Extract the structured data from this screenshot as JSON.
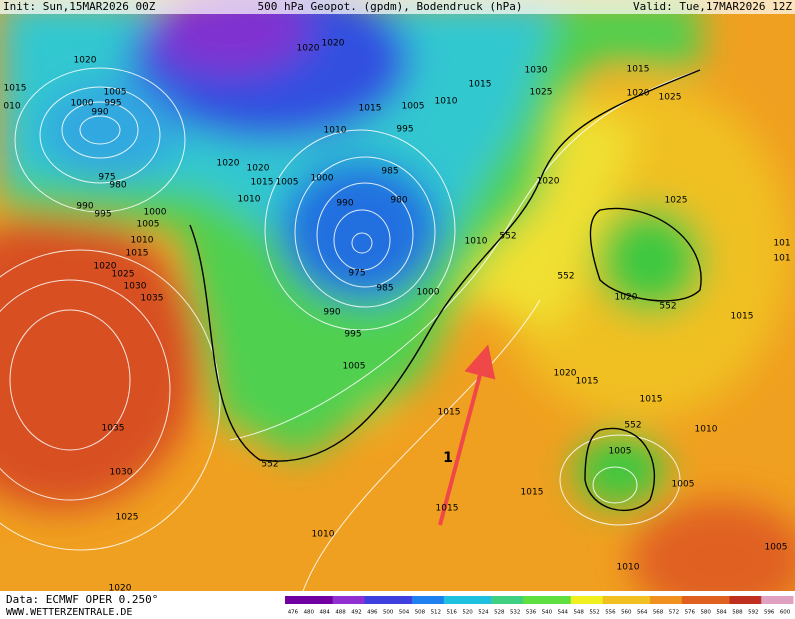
{
  "header": {
    "init": "Init: Sun,15MAR2026 00Z",
    "title": "500 hPa Geopot. (gpdm), Bodendruck (hPa)",
    "valid": "Valid: Tue,17MAR2026 12Z"
  },
  "footer": {
    "data": "Data: ECMWF OPER 0.250°",
    "site": "WWW.WETTERZENTRALE.DE"
  },
  "arrow_label": "1",
  "isobar_labels": [
    1020,
    1015,
    "010",
    1005,
    1000,
    995,
    990,
    975,
    980,
    990,
    995,
    1000,
    1005,
    1010,
    1015,
    1020,
    1025,
    1030,
    1035,
    1035,
    1030,
    1025,
    1020,
    1020,
    1020,
    1015,
    1005,
    1010,
    1015,
    1030,
    1025,
    1015,
    1020,
    1025,
    1010,
    995,
    1020,
    1020,
    1015,
    1005,
    1010,
    1000,
    985,
    990,
    980,
    975,
    985,
    990,
    995,
    1000,
    1005,
    1010,
    552,
    1020,
    1025,
    552,
    1020,
    552,
    101,
    101,
    1015,
    1020,
    1015,
    1015,
    1010,
    1015,
    552,
    1005,
    1005,
    1015,
    1015,
    1010,
    1010,
    1005,
    552
  ],
  "colorbar_labels": [
    476,
    480,
    484,
    488,
    492,
    496,
    500,
    504,
    508,
    512,
    516,
    520,
    524,
    528,
    532,
    536,
    540,
    544,
    548,
    552,
    556,
    560,
    564,
    568,
    572,
    576,
    580,
    584,
    588,
    592,
    596,
    600
  ]
}
